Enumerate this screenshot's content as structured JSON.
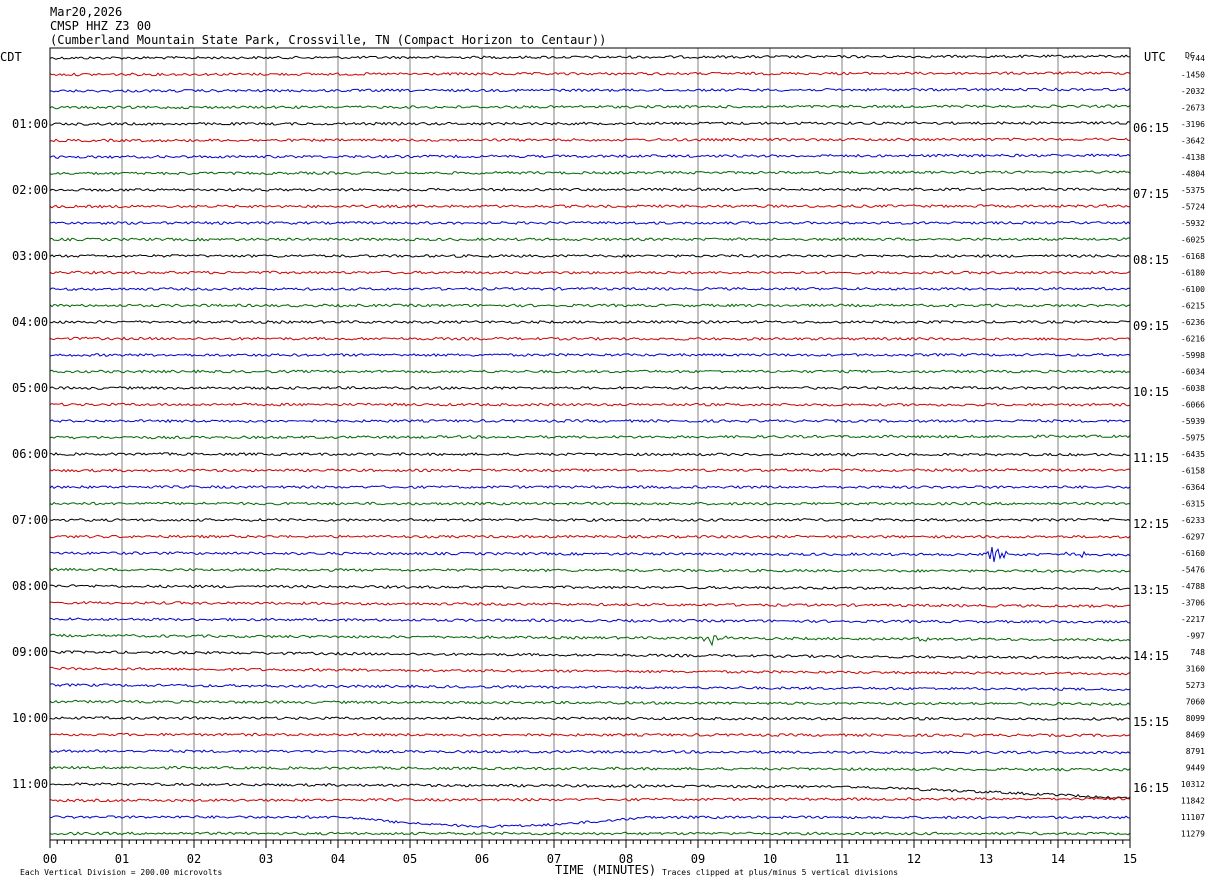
{
  "header": {
    "date": "Mar20,2026",
    "station": "CMSP HHZ Z3 00",
    "location": "(Cumberland Mountain State Park, Crossville, TN (Compact Horizon to Centaur))"
  },
  "labels": {
    "left_tz": "CDT",
    "right_tz": "UTC",
    "dc": "DC",
    "xlabel": "TIME (MINUTES)",
    "footer_left": "Each Vertical Division = 200.00 microvolts",
    "footer_right": "Traces clipped at plus/minus 5 vertical divisions"
  },
  "colors": {
    "traces": [
      "#000000",
      "#cc0000",
      "#0000cc",
      "#006600"
    ],
    "grid": "#808080"
  },
  "chart_data": {
    "type": "line",
    "title": "CMSP HHZ Z3 00",
    "xlabel": "TIME (MINUTES)",
    "xlim": [
      0,
      15
    ],
    "x_ticks": [
      "00",
      "01",
      "02",
      "03",
      "04",
      "05",
      "06",
      "07",
      "08",
      "09",
      "10",
      "11",
      "12",
      "13",
      "14",
      "15"
    ],
    "left_hour_labels": [
      "01:00",
      "02:00",
      "03:00",
      "04:00",
      "05:00",
      "06:00",
      "07:00",
      "08:00",
      "09:00",
      "10:00",
      "11:00"
    ],
    "right_hour_labels": [
      "06:15",
      "07:15",
      "08:15",
      "09:15",
      "10:15",
      "11:15",
      "12:15",
      "13:15",
      "14:15",
      "15:15",
      "16:15"
    ],
    "dc_offsets": [
      -744,
      -1450,
      -2032,
      -2673,
      -3196,
      -3642,
      -4138,
      -4804,
      -5375,
      -5724,
      -5932,
      -6025,
      -6168,
      -6180,
      -6100,
      -6215,
      -6236,
      -6216,
      -5998,
      -6034,
      -6038,
      -6066,
      -5939,
      -5975,
      -6435,
      -6158,
      -6364,
      -6315,
      -6233,
      -6297,
      -6160,
      -5476,
      -4788,
      -3706,
      -2217,
      -997,
      748,
      3160,
      5273,
      7060,
      8099,
      8469,
      8791,
      9449,
      10312,
      11842,
      11107,
      11279
    ],
    "grid": true,
    "events": [
      {
        "trace": 30,
        "minute": 13.1,
        "amplitude": 0.9
      },
      {
        "trace": 30,
        "minute": 14.3,
        "amplitude": 0.4
      },
      {
        "trace": 35,
        "minute": 9.2,
        "amplitude": 0.7
      },
      {
        "trace": 35,
        "minute": 12.1,
        "amplitude": 0.3
      }
    ]
  }
}
